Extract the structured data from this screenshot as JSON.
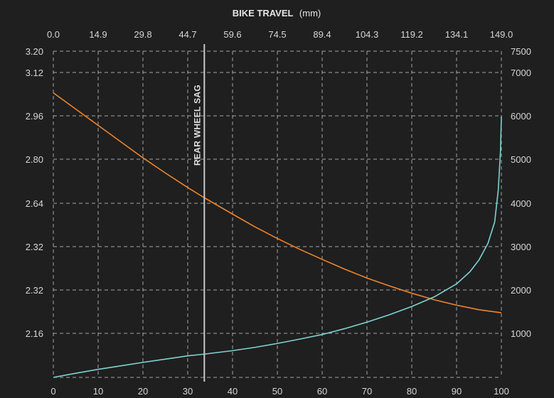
{
  "colors": {
    "background": "#1f1f1f",
    "orange_series": "#f0842a",
    "cyan_series": "#7dd3d4",
    "sag_line": "#c8c8c8",
    "grid": "#cfcfcf",
    "text": "#d6d6d6"
  },
  "chart_data": {
    "type": "line",
    "title_bold": "BIKE TRAVEL",
    "title_unit": "(mm)",
    "grid": true,
    "x_bottom": {
      "range": [
        0,
        100
      ],
      "ticks": [
        "0",
        "10",
        "20",
        "30",
        "40",
        "50",
        "60",
        "70",
        "80",
        "90",
        "100"
      ]
    },
    "x_top": {
      "range": [
        0.0,
        149.0
      ],
      "ticks": [
        "0.0",
        "14.9",
        "29.8",
        "44.7",
        "59.6",
        "74.5",
        "89.4",
        "104.3",
        "119.2",
        "134.1",
        "149.0"
      ]
    },
    "y_left": {
      "ticks": [
        "3.20",
        "3.12",
        "2.96",
        "2.80",
        "2.64",
        "2.32",
        "2.32",
        "2.16"
      ]
    },
    "y_right": {
      "range": [
        0,
        7500
      ],
      "ticks": [
        "7500",
        "7000",
        "6000",
        "5000",
        "4000",
        "3000",
        "2000",
        "1000"
      ]
    },
    "annotation": {
      "label": "REAR WHEEL SAG",
      "x": 33.7
    },
    "series": [
      {
        "color": "#f0842a",
        "axis": "left",
        "points": [
          [
            0,
            3.045
          ],
          [
            5,
            2.985
          ],
          [
            10,
            2.925
          ],
          [
            15,
            2.865
          ],
          [
            20,
            2.805
          ],
          [
            25,
            2.75
          ],
          [
            30,
            2.697
          ],
          [
            33.7,
            2.66
          ],
          [
            40,
            2.6
          ],
          [
            45,
            2.553
          ],
          [
            50,
            2.51
          ],
          [
            55,
            2.47
          ],
          [
            60,
            2.433
          ],
          [
            65,
            2.397
          ],
          [
            70,
            2.364
          ],
          [
            75,
            2.335
          ],
          [
            80,
            2.308
          ],
          [
            85,
            2.284
          ],
          [
            90,
            2.264
          ],
          [
            95,
            2.247
          ],
          [
            100,
            2.236
          ]
        ]
      },
      {
        "color": "#7dd3d4",
        "axis": "right",
        "points": [
          [
            0,
            0
          ],
          [
            5,
            95
          ],
          [
            10,
            185
          ],
          [
            15,
            265
          ],
          [
            20,
            345
          ],
          [
            25,
            420
          ],
          [
            30,
            495
          ],
          [
            33.7,
            535
          ],
          [
            40,
            615
          ],
          [
            45,
            690
          ],
          [
            50,
            780
          ],
          [
            55,
            880
          ],
          [
            60,
            985
          ],
          [
            65,
            1120
          ],
          [
            70,
            1270
          ],
          [
            75,
            1440
          ],
          [
            80,
            1630
          ],
          [
            85,
            1850
          ],
          [
            90,
            2150
          ],
          [
            93,
            2430
          ],
          [
            95,
            2700
          ],
          [
            97,
            3080
          ],
          [
            98.5,
            3570
          ],
          [
            99.3,
            4300
          ],
          [
            99.8,
            5200
          ],
          [
            100,
            6000
          ]
        ]
      }
    ]
  }
}
